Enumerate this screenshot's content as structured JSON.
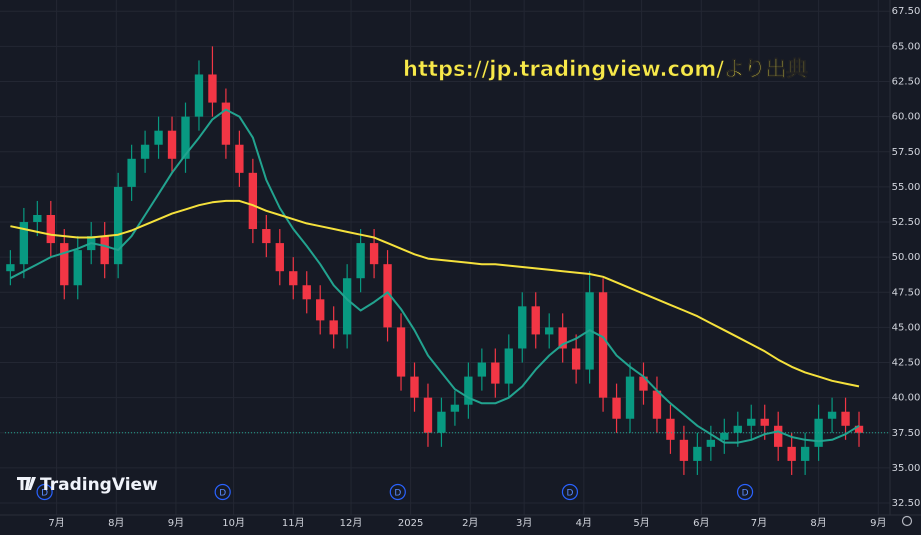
{
  "chart_data": {
    "type": "candlestick",
    "watermark": "https://jp.tradingview.com/より出典",
    "logo": "TradingView",
    "up_color": "#089981",
    "down_color": "#f23645",
    "open": [
      49,
      49.5,
      52.5,
      53,
      51,
      48,
      50.5,
      51.5,
      49.5,
      55,
      57,
      58,
      59,
      57,
      60,
      63,
      61,
      58,
      56,
      52,
      51,
      49,
      48,
      47,
      45.5,
      44.5,
      48.5,
      51,
      49.5,
      45,
      41.5,
      40,
      37.5,
      39,
      39.5,
      41.5,
      42.5,
      41,
      43.5,
      46.5,
      44.5,
      45,
      43.5,
      42,
      47.5,
      40,
      38.5,
      41.5,
      40.5,
      38.5,
      37,
      35.5,
      36.5,
      37,
      37.5,
      38,
      38.5,
      38,
      36.5,
      35.5,
      36.5,
      38.5,
      39,
      38
    ],
    "high": [
      50.5,
      53.5,
      54,
      54,
      52,
      51.5,
      52.5,
      52.5,
      56,
      58,
      59,
      60,
      60,
      61,
      64,
      65,
      62,
      59,
      57,
      53,
      52,
      50,
      49,
      48,
      46.5,
      49.5,
      52,
      52,
      50.5,
      46,
      42.5,
      41,
      40,
      40.5,
      42.5,
      43.5,
      43.5,
      44.5,
      47.5,
      47.5,
      46,
      46,
      44.5,
      49,
      48.5,
      41,
      42.5,
      42.5,
      41.5,
      39.5,
      38,
      37.5,
      38,
      38.5,
      39,
      39.5,
      39.5,
      39,
      37.5,
      37.5,
      39.5,
      40,
      40,
      39
    ],
    "low": [
      48,
      48.5,
      51.5,
      50,
      47,
      47,
      49.5,
      48.5,
      48.5,
      54,
      56,
      57,
      56,
      56,
      59,
      60,
      57,
      55,
      51,
      50,
      48,
      47,
      46,
      44.5,
      43.5,
      43.5,
      47.5,
      48.5,
      44,
      40.5,
      39,
      36.5,
      36.5,
      38,
      38.5,
      40.5,
      40,
      40,
      42.5,
      43.5,
      43.5,
      42.5,
      41,
      41,
      39,
      37.5,
      37.5,
      39.5,
      37.5,
      36,
      34.5,
      34.5,
      35.5,
      36,
      36.5,
      37,
      37,
      35.5,
      34.5,
      34.5,
      35.5,
      37.5,
      37,
      36.5
    ],
    "close": [
      49.5,
      52.5,
      53,
      51,
      48,
      50.5,
      51.5,
      49.5,
      55,
      57,
      58,
      59,
      57,
      60,
      63,
      61,
      58,
      56,
      52,
      51,
      49,
      48,
      47,
      45.5,
      44.5,
      48.5,
      51,
      49.5,
      45,
      41.5,
      40,
      37.5,
      39,
      39.5,
      41.5,
      42.5,
      41,
      43.5,
      46.5,
      44.5,
      45,
      43.5,
      42,
      47.5,
      40,
      38.5,
      41.5,
      40.5,
      38.5,
      37,
      35.5,
      36.5,
      37,
      37.5,
      38,
      38.5,
      38,
      36.5,
      35.5,
      36.5,
      38.5,
      39,
      38,
      37.5
    ],
    "series": [
      {
        "color": "#22a38f",
        "values": [
          48.5,
          49,
          49.5,
          50,
          50.3,
          50.6,
          51,
          50.8,
          50.5,
          51.5,
          53,
          54.5,
          56,
          57.3,
          58.5,
          59.8,
          60.5,
          60,
          58.5,
          55.5,
          53.5,
          52,
          50.8,
          49.5,
          48,
          47,
          46.2,
          46.8,
          47.5,
          46.3,
          44.8,
          43,
          41.8,
          40.6,
          40,
          39.6,
          39.6,
          40,
          40.8,
          42,
          43,
          43.8,
          44.2,
          44.8,
          44.3,
          43,
          42.2,
          41.5,
          40.5,
          39.6,
          38.8,
          38,
          37.4,
          36.8,
          36.8,
          37,
          37.4,
          37.6,
          37.2,
          37,
          36.9,
          37,
          37.4,
          38
        ]
      },
      {
        "color": "#f5e13c",
        "values": [
          52.2,
          52,
          51.8,
          51.6,
          51.5,
          51.4,
          51.4,
          51.5,
          51.6,
          51.9,
          52.3,
          52.7,
          53.1,
          53.4,
          53.7,
          53.9,
          54,
          54,
          53.7,
          53.3,
          53,
          52.7,
          52.4,
          52.2,
          52,
          51.8,
          51.6,
          51.4,
          51,
          50.6,
          50.2,
          49.9,
          49.8,
          49.7,
          49.6,
          49.5,
          49.5,
          49.4,
          49.3,
          49.2,
          49.1,
          49,
          48.9,
          48.8,
          48.6,
          48.2,
          47.8,
          47.4,
          47,
          46.6,
          46.2,
          45.8,
          45.3,
          44.8,
          44.3,
          43.8,
          43.3,
          42.7,
          42.2,
          41.8,
          41.5,
          41.2,
          41,
          40.8
        ]
      }
    ],
    "events": [
      {
        "label": "D",
        "x": 2.54
      },
      {
        "label": "D",
        "x": 15.76
      },
      {
        "label": "D",
        "x": 28.76
      },
      {
        "label": "D",
        "x": 41.54
      },
      {
        "label": "D",
        "x": 54.54
      }
    ],
    "xlim": [
      -0.4,
      65.3
    ],
    "xticks": [
      {
        "value": 3.43,
        "label": "7月"
      },
      {
        "value": 7.86,
        "label": "8月"
      },
      {
        "value": 12.29,
        "label": "9月"
      },
      {
        "value": 16.57,
        "label": "10月"
      },
      {
        "value": 21,
        "label": "11月"
      },
      {
        "value": 25.29,
        "label": "12月"
      },
      {
        "value": 29.71,
        "label": "2025"
      },
      {
        "value": 34.14,
        "label": "2月"
      },
      {
        "value": 38.14,
        "label": "3月"
      },
      {
        "value": 42.57,
        "label": "4月"
      },
      {
        "value": 46.86,
        "label": "5月"
      },
      {
        "value": 51.29,
        "label": "6月"
      },
      {
        "value": 55.57,
        "label": "7月"
      },
      {
        "value": 60,
        "label": "8月"
      },
      {
        "value": 64.43,
        "label": "9月"
      }
    ],
    "ylim": [
      31.65,
      68.3
    ],
    "yticks": [
      {
        "value": 32.5,
        "label": "32.50"
      },
      {
        "value": 35,
        "label": "35.00"
      },
      {
        "value": 37.5,
        "label": "37.50"
      },
      {
        "value": 40,
        "label": "40.00"
      },
      {
        "value": 42.5,
        "label": "42.50"
      },
      {
        "value": 45,
        "label": "45.00"
      },
      {
        "value": 47.5,
        "label": "47.50"
      },
      {
        "value": 50,
        "label": "50.00"
      },
      {
        "value": 52.5,
        "label": "52.50"
      },
      {
        "value": 55,
        "label": "55.00"
      },
      {
        "value": 57.5,
        "label": "57.50"
      },
      {
        "value": 60,
        "label": "60.00"
      },
      {
        "value": 62.5,
        "label": "62.50"
      },
      {
        "value": 65,
        "label": "65.00"
      },
      {
        "value": 67.5,
        "label": "67.50"
      }
    ],
    "grid": true
  }
}
